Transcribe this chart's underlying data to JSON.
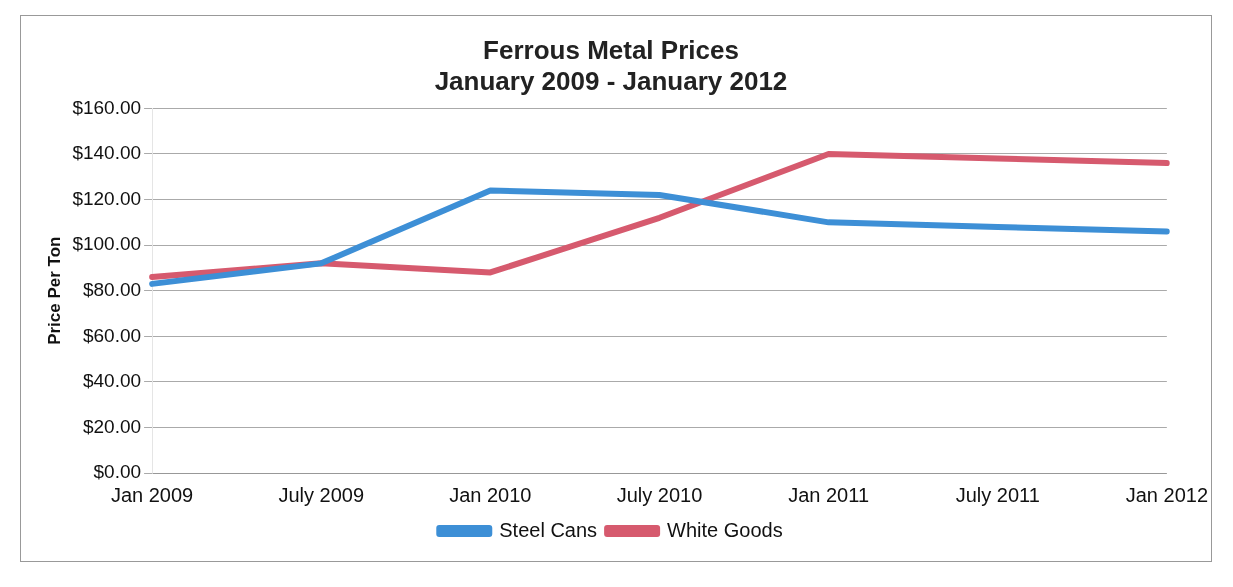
{
  "chart_data": {
    "type": "line",
    "title": "Ferrous Metal Prices\nJanuary 2009 - January 2012",
    "ylabel": "Price Per Ton",
    "categories": [
      "Jan 2009",
      "July 2009",
      "Jan 2010",
      "July 2010",
      "Jan 2011",
      "July 2011",
      "Jan 2012"
    ],
    "series": [
      {
        "name": "Steel Cans",
        "color": "#3d8fd6",
        "values": [
          83,
          92,
          124,
          122,
          110,
          108,
          106
        ]
      },
      {
        "name": "White Goods",
        "color": "#d65a6e",
        "values": [
          86,
          92,
          88,
          112,
          140,
          138,
          136
        ]
      }
    ],
    "ylim": [
      0,
      160
    ],
    "yticks": [
      {
        "value": 0,
        "label": "$0.00"
      },
      {
        "value": 20,
        "label": "$20.00"
      },
      {
        "value": 40,
        "label": "$40.00"
      },
      {
        "value": 60,
        "label": "$60.00"
      },
      {
        "value": 80,
        "label": "$80.00"
      },
      {
        "value": 100,
        "label": "$100.00"
      },
      {
        "value": 120,
        "label": "$120.00"
      },
      {
        "value": 140,
        "label": "$140.00"
      },
      {
        "value": 160,
        "label": "$160.00"
      }
    ],
    "grid": "y",
    "legend": "bottom",
    "marker": "none",
    "line_style": "solid"
  }
}
